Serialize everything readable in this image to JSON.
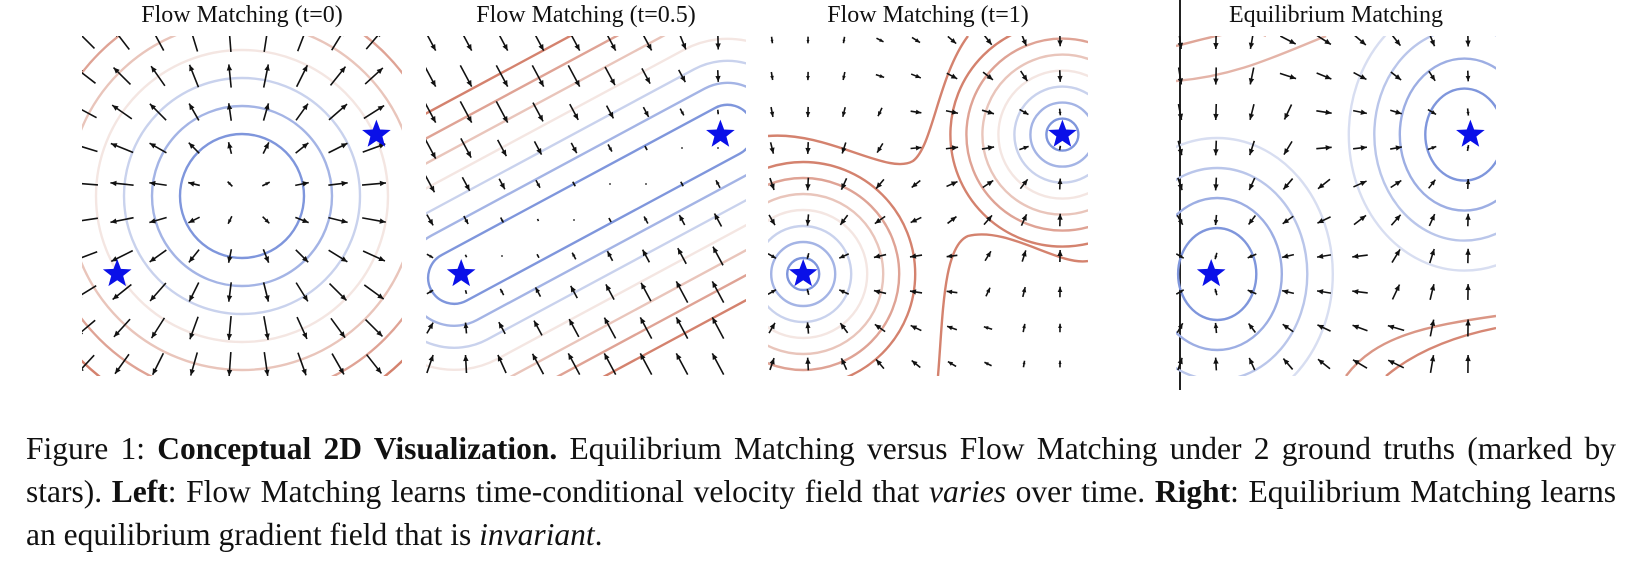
{
  "panels": [
    {
      "title": "Flow Matching (t=0)",
      "mode": "t0",
      "stars": [
        [
          0.11,
          0.7
        ],
        [
          0.92,
          0.29
        ]
      ]
    },
    {
      "title": "Flow Matching (t=0.5)",
      "mode": "t05",
      "stars": [
        [
          0.11,
          0.7
        ],
        [
          0.92,
          0.29
        ]
      ]
    },
    {
      "title": "Flow Matching (t=1)",
      "mode": "t1",
      "stars": [
        [
          0.11,
          0.7
        ],
        [
          0.92,
          0.29
        ]
      ]
    },
    {
      "title": "Equilibrium Matching",
      "mode": "eqm",
      "stars": [
        [
          0.11,
          0.7
        ],
        [
          0.92,
          0.29
        ]
      ]
    }
  ],
  "caption": {
    "prefix": "Figure 1: ",
    "bold_title": "Conceptual 2D Visualization.",
    "text1": " Equilibrium Matching versus Flow Matching under 2 ground truths (marked by stars). ",
    "left_label": "Left",
    "text2": ": Flow Matching learns time-conditional velocity field that ",
    "varies": "varies",
    "text3": " over time. ",
    "right_label": "Right",
    "text4": ": Equilibrium Matching learns an equilibrium gradient field that is ",
    "invariant": "invariant",
    "text5": "."
  },
  "colors": {
    "star": "#0a10e8",
    "arrow": "#111111",
    "contour_blue": "#7f96dc",
    "contour_red": "#d4826e"
  }
}
